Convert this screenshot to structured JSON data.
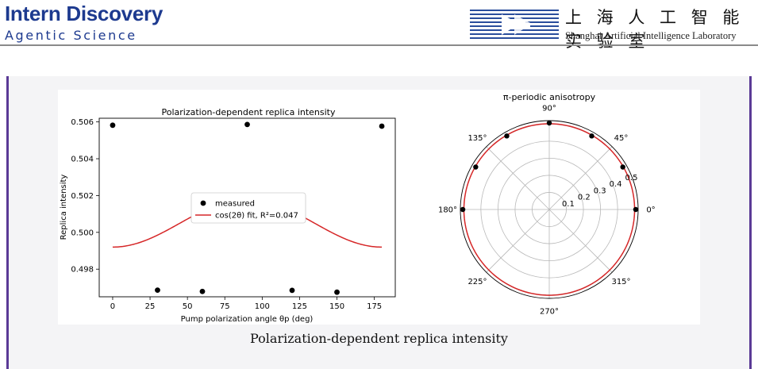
{
  "header": {
    "brand_word1": "Intern",
    "brand_word2": "Discovery",
    "brand_subtitle": "Agentic Science",
    "lab_name_cn": "上 海 人 工 智 能 实 验 室",
    "lab_name_en": "Shanghai Artificial Intelligence Laboratory"
  },
  "caption": "Polarization-dependent replica intensity",
  "colors": {
    "frame": "#5b3a96",
    "fit_line": "#d62728",
    "points": "#000000"
  },
  "chart_data": [
    {
      "type": "scatter",
      "title": "Polarization-dependent replica intensity",
      "xlabel": "Pump polarization angle θp (deg)",
      "ylabel": "Replica intensity",
      "xlim": [
        -9,
        189
      ],
      "ylim": [
        0.4965,
        0.5062
      ],
      "xticks": [
        0,
        25,
        50,
        75,
        100,
        125,
        150,
        175
      ],
      "yticks": [
        0.498,
        0.5,
        0.502,
        0.504,
        0.506
      ],
      "ytick_labels": [
        "0.498",
        "0.500",
        "0.502",
        "0.504",
        "0.506"
      ],
      "legend_position": "center",
      "series": [
        {
          "name": "measured",
          "kind": "scatter",
          "x": [
            0,
            30,
            60,
            90,
            120,
            150,
            180
          ],
          "y": [
            0.50582,
            0.49686,
            0.49679,
            0.50586,
            0.49685,
            0.49675,
            0.50577
          ]
        },
        {
          "name": "cos(2θ) fit, R²=0.047",
          "kind": "line",
          "model": {
            "offset": 0.5005,
            "amplitude": 0.0013,
            "frequency_factor": 2
          }
        }
      ]
    },
    {
      "type": "polar",
      "title": "π-periodic anisotropy",
      "rlim": [
        0,
        0.52
      ],
      "rticks": [
        0.1,
        0.2,
        0.3,
        0.4,
        0.5
      ],
      "angle_ticks": [
        0,
        45,
        90,
        135,
        180,
        225,
        270,
        315
      ],
      "angle_tick_labels": [
        "0°",
        "45°",
        "90°",
        "135°",
        "180°",
        "225°",
        "270°",
        "315°"
      ],
      "series": [
        {
          "name": "measured",
          "kind": "scatter",
          "theta": [
            0,
            30,
            60,
            90,
            120,
            150,
            180
          ],
          "r": [
            0.50582,
            0.49686,
            0.49679,
            0.50586,
            0.49685,
            0.49675,
            0.50577
          ]
        },
        {
          "name": "fit",
          "kind": "line",
          "model": {
            "offset": 0.5005,
            "amplitude": 0.0013,
            "frequency_factor": 2
          }
        }
      ]
    }
  ]
}
